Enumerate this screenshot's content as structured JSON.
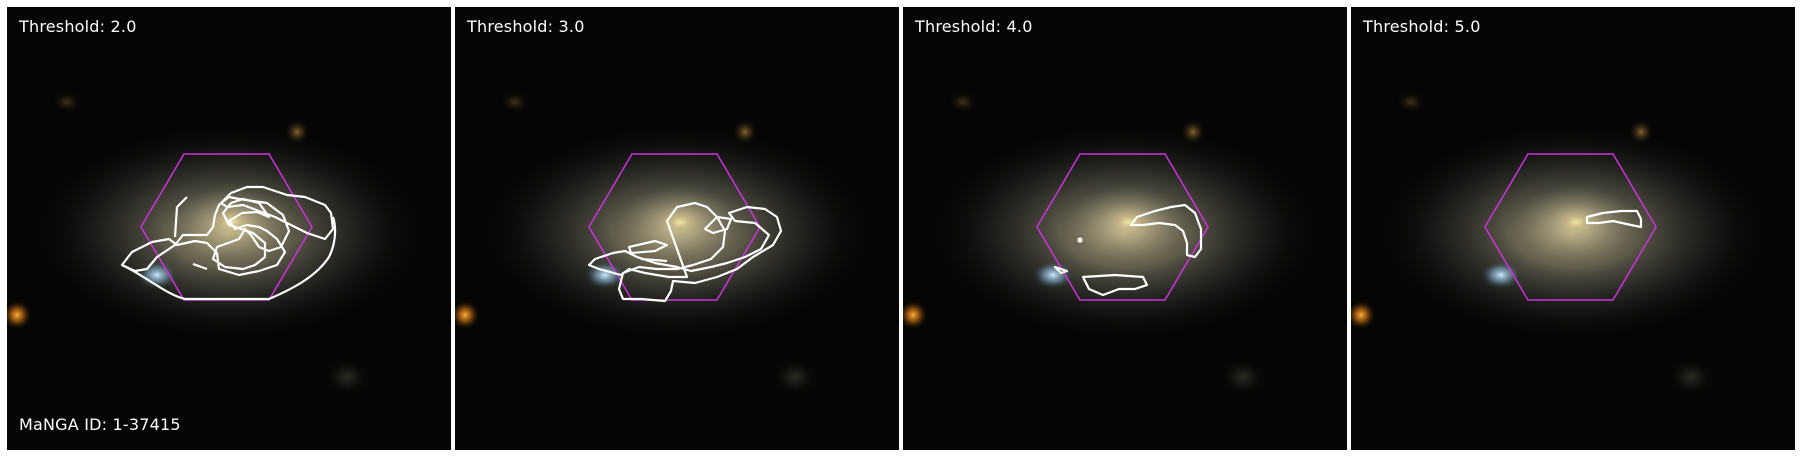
{
  "manga_id": "MaNGA ID: 1-37415",
  "colors": {
    "contour": "#ffffff",
    "hexagon": "#cc33dd",
    "background": "#050505"
  },
  "panels": [
    {
      "title": "Threshold: 2.0",
      "threshold": 2.0
    },
    {
      "title": "Threshold: 3.0",
      "threshold": 3.0
    },
    {
      "title": "Threshold: 4.0",
      "threshold": 4.0
    },
    {
      "title": "Threshold: 5.0",
      "threshold": 5.0
    }
  ]
}
